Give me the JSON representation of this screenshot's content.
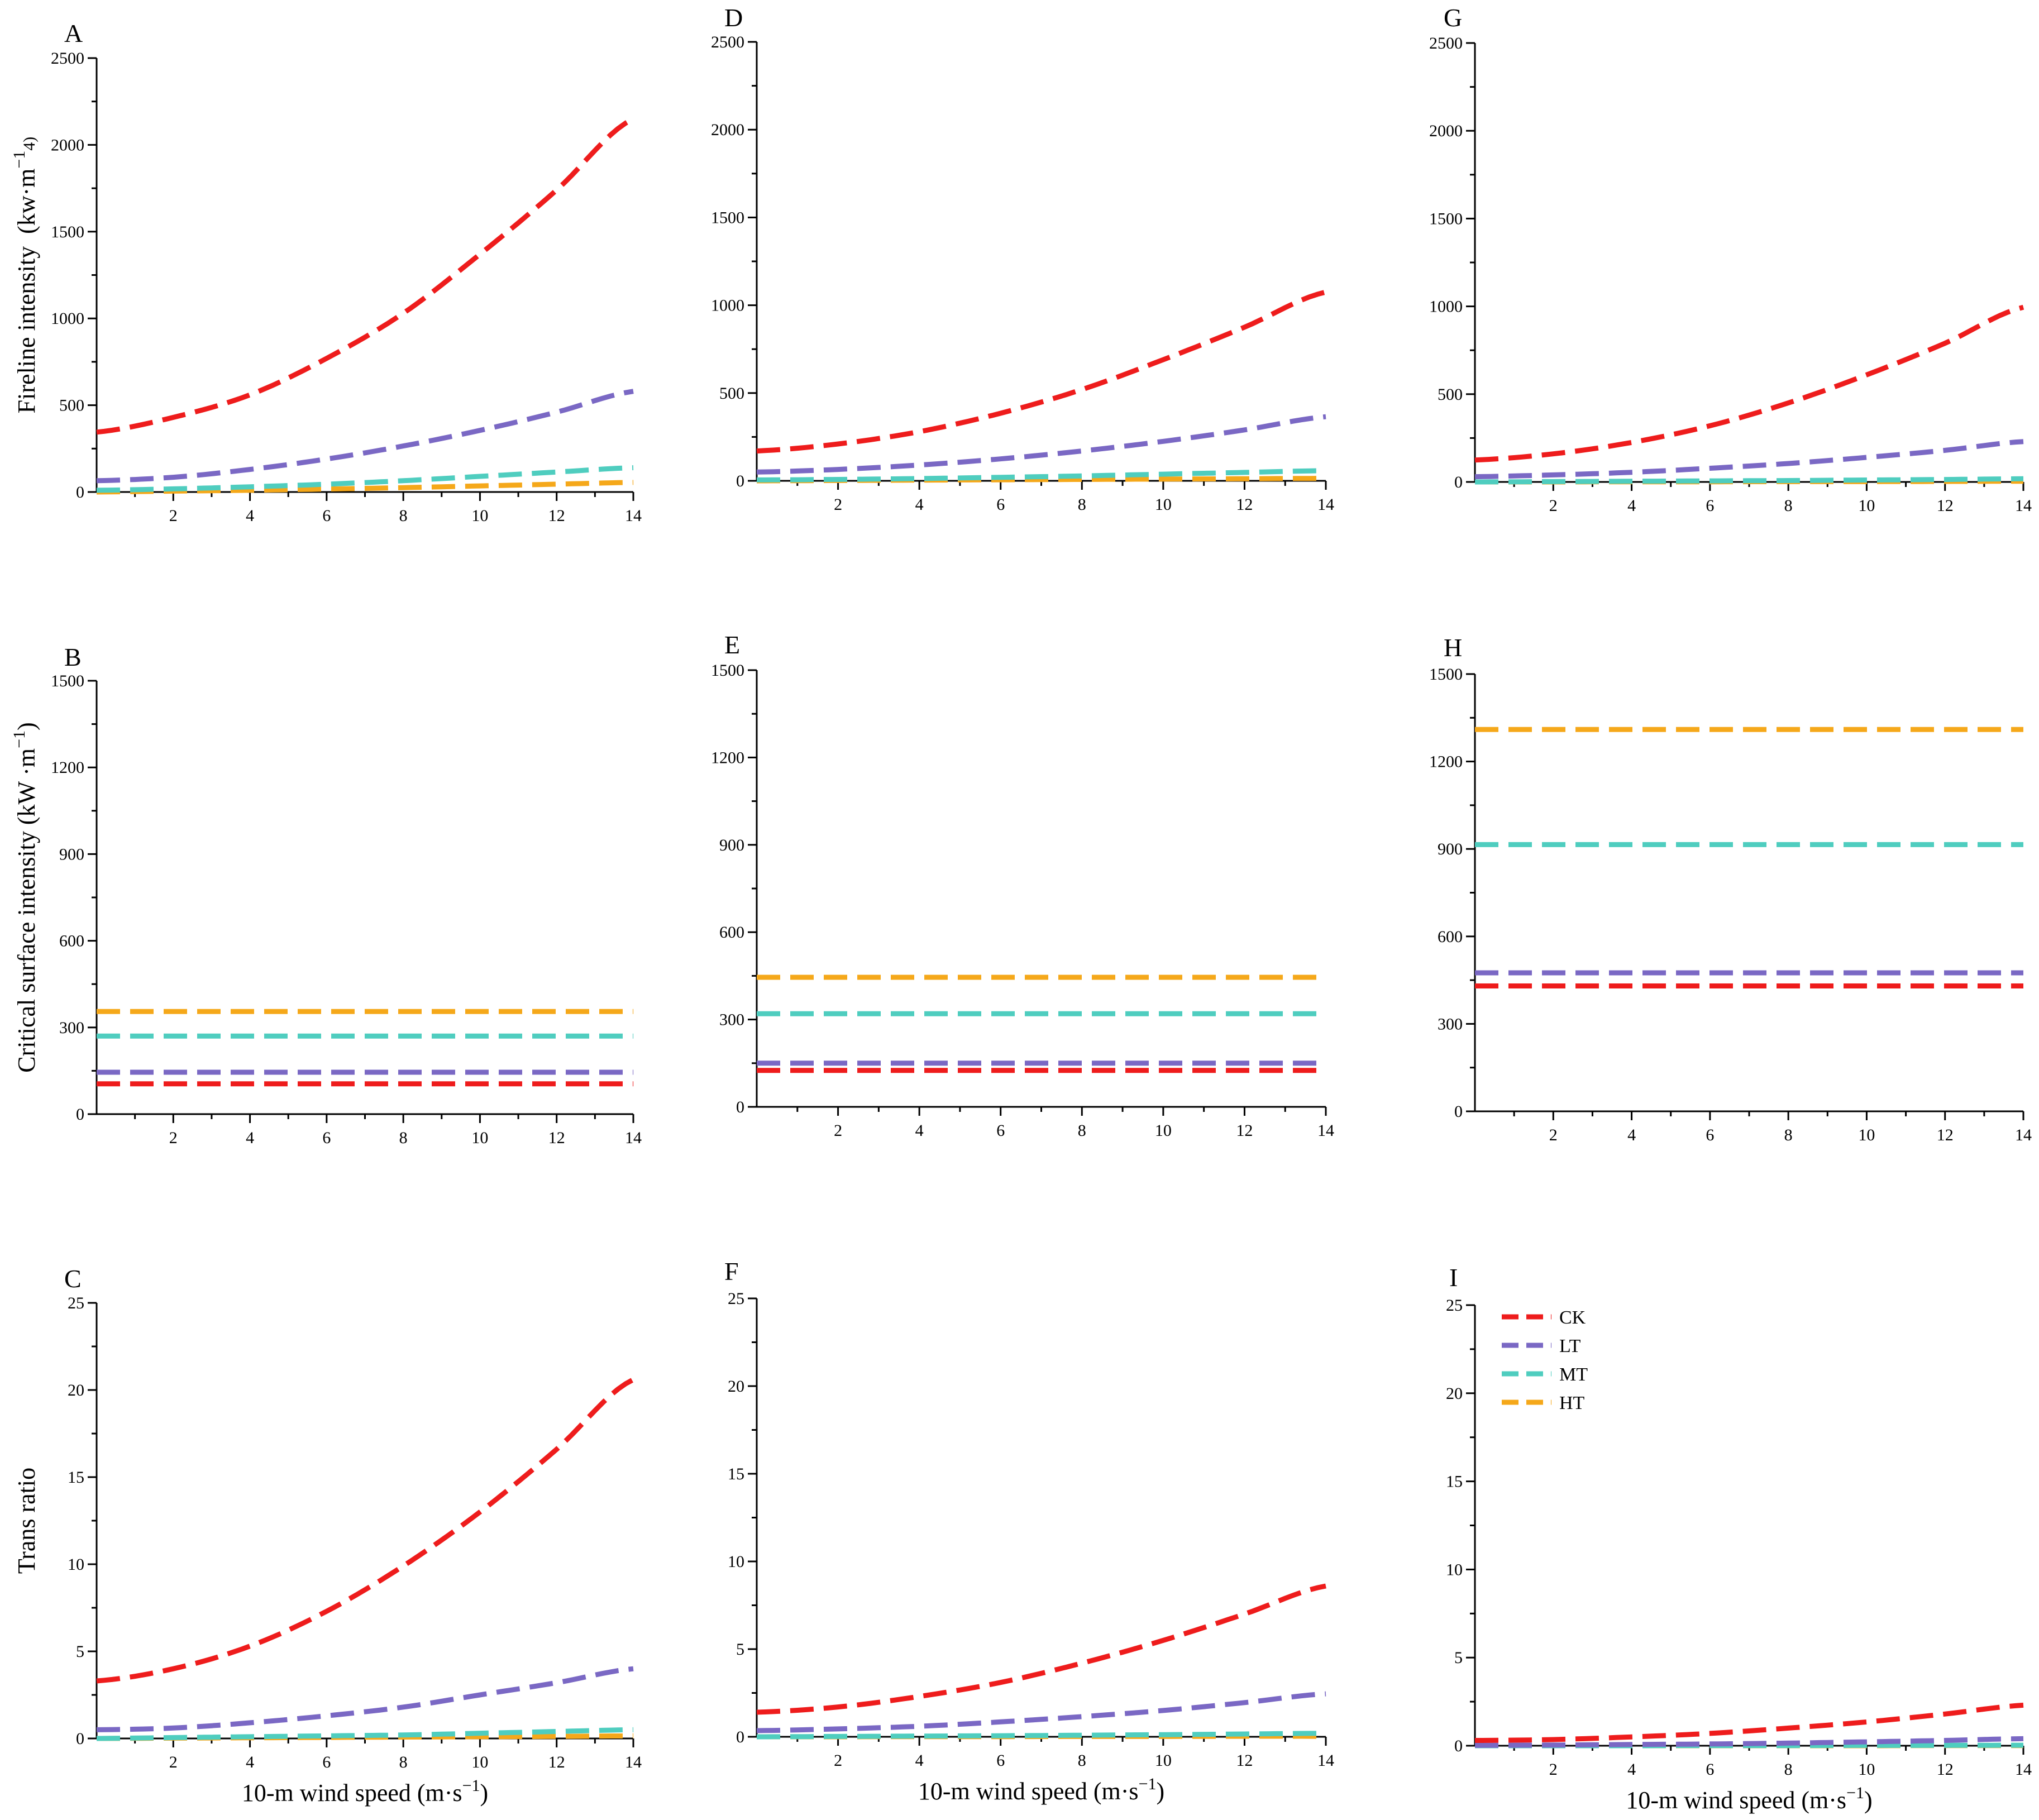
{
  "colors": {
    "CK": "#ee1c1c",
    "LT": "#7a68c4",
    "MT": "#4fcdbf",
    "HT": "#f5a81a",
    "axis": "#000000"
  },
  "legend": {
    "entries": [
      "CK",
      "LT",
      "MT",
      "HT"
    ],
    "placement": "top-left of panel I"
  },
  "chart_data": [
    {
      "panel": "A",
      "type": "line",
      "ylabel_main": "Fireline intensity",
      "ylabel_unit": "(kw·m",
      "ylabel_sup": "−1",
      "ylabel_extra": "4)",
      "xlabel": "",
      "xlim": [
        0,
        14
      ],
      "ylim": [
        0,
        2500
      ],
      "xticks": [
        2,
        4,
        6,
        8,
        10,
        12,
        14
      ],
      "yticks": [
        0,
        500,
        1000,
        1500,
        2000,
        2500
      ],
      "x": [
        0,
        2,
        4,
        6,
        8,
        10,
        12,
        14
      ],
      "series": [
        {
          "name": "CK",
          "values": [
            345,
            430,
            560,
            770,
            1030,
            1370,
            1740,
            2150
          ]
        },
        {
          "name": "LT",
          "values": [
            65,
            85,
            130,
            190,
            265,
            355,
            460,
            580
          ]
        },
        {
          "name": "MT",
          "values": [
            10,
            18,
            30,
            45,
            65,
            90,
            115,
            140
          ]
        },
        {
          "name": "HT",
          "values": [
            0,
            5,
            10,
            17,
            25,
            35,
            45,
            55
          ]
        }
      ]
    },
    {
      "panel": "B",
      "type": "line",
      "ylabel_main": "Critical surface intensity (kW ·m",
      "ylabel_sup": "−1",
      "ylabel_close": ")",
      "xlabel": "",
      "xlim": [
        0,
        14
      ],
      "ylim": [
        0,
        1500
      ],
      "xticks": [
        2,
        4,
        6,
        8,
        10,
        12,
        14
      ],
      "yticks": [
        0,
        300,
        600,
        900,
        1200,
        1500
      ],
      "x": [
        0,
        14
      ],
      "series": [
        {
          "name": "CK",
          "values": [
            105,
            105
          ]
        },
        {
          "name": "LT",
          "values": [
            145,
            145
          ]
        },
        {
          "name": "MT",
          "values": [
            270,
            270
          ]
        },
        {
          "name": "HT",
          "values": [
            355,
            355
          ]
        }
      ]
    },
    {
      "panel": "C",
      "type": "line",
      "ylabel_main": "Trans ratio",
      "xlabel": "10-m wind speed (m·s",
      "xlabel_sup": "−1",
      "xlabel_close": ")",
      "xlim": [
        0,
        14
      ],
      "ylim": [
        0,
        25
      ],
      "xticks": [
        2,
        4,
        6,
        8,
        10,
        12,
        14
      ],
      "yticks": [
        0,
        5,
        10,
        15,
        20,
        25
      ],
      "x": [
        0,
        2,
        4,
        6,
        8,
        10,
        12,
        14
      ],
      "series": [
        {
          "name": "CK",
          "values": [
            3.3,
            4.0,
            5.3,
            7.3,
            9.9,
            13.0,
            16.6,
            20.6
          ]
        },
        {
          "name": "LT",
          "values": [
            0.5,
            0.6,
            0.9,
            1.3,
            1.8,
            2.5,
            3.2,
            4.0
          ]
        },
        {
          "name": "MT",
          "values": [
            0.0,
            0.05,
            0.1,
            0.15,
            0.2,
            0.3,
            0.4,
            0.5
          ]
        },
        {
          "name": "HT",
          "values": [
            0.0,
            0.02,
            0.04,
            0.06,
            0.08,
            0.1,
            0.12,
            0.15
          ]
        }
      ]
    },
    {
      "panel": "D",
      "type": "line",
      "xlim": [
        0,
        14
      ],
      "ylim": [
        0,
        2500
      ],
      "xticks": [
        2,
        4,
        6,
        8,
        10,
        12,
        14
      ],
      "yticks": [
        0,
        500,
        1000,
        1500,
        2000,
        2500
      ],
      "x": [
        0,
        2,
        4,
        6,
        8,
        10,
        12,
        14
      ],
      "series": [
        {
          "name": "CK",
          "values": [
            170,
            210,
            280,
            385,
            520,
            690,
            875,
            1075
          ]
        },
        {
          "name": "LT",
          "values": [
            50,
            65,
            90,
            125,
            170,
            225,
            290,
            365
          ]
        },
        {
          "name": "MT",
          "values": [
            5,
            8,
            13,
            20,
            28,
            38,
            48,
            58
          ]
        },
        {
          "name": "HT",
          "values": [
            0,
            2,
            4,
            6,
            8,
            10,
            12,
            14
          ]
        }
      ]
    },
    {
      "panel": "E",
      "type": "line",
      "xlim": [
        0,
        14
      ],
      "ylim": [
        0,
        1500
      ],
      "xticks": [
        2,
        4,
        6,
        8,
        10,
        12,
        14
      ],
      "yticks": [
        0,
        300,
        600,
        900,
        1200,
        1500
      ],
      "x": [
        0,
        14
      ],
      "series": [
        {
          "name": "CK",
          "values": [
            125,
            125
          ]
        },
        {
          "name": "LT",
          "values": [
            150,
            150
          ]
        },
        {
          "name": "MT",
          "values": [
            320,
            320
          ]
        },
        {
          "name": "HT",
          "values": [
            445,
            445
          ]
        }
      ]
    },
    {
      "panel": "F",
      "type": "line",
      "xlabel": "10-m wind speed (m·s",
      "xlabel_sup": "−1",
      "xlabel_close": ")",
      "xlim": [
        0,
        14
      ],
      "ylim": [
        0,
        25
      ],
      "xticks": [
        2,
        4,
        6,
        8,
        10,
        12,
        14
      ],
      "yticks": [
        0,
        5,
        10,
        15,
        20,
        25
      ],
      "x": [
        0,
        2,
        4,
        6,
        8,
        10,
        12,
        14
      ],
      "series": [
        {
          "name": "CK",
          "values": [
            1.4,
            1.7,
            2.3,
            3.1,
            4.2,
            5.5,
            7.0,
            8.6
          ]
        },
        {
          "name": "LT",
          "values": [
            0.35,
            0.45,
            0.6,
            0.85,
            1.15,
            1.5,
            1.95,
            2.45
          ]
        },
        {
          "name": "MT",
          "values": [
            0.0,
            0.02,
            0.04,
            0.06,
            0.09,
            0.12,
            0.16,
            0.2
          ]
        },
        {
          "name": "HT",
          "values": [
            0.0,
            0.0,
            0.01,
            0.01,
            0.02,
            0.02,
            0.03,
            0.03
          ]
        }
      ]
    },
    {
      "panel": "G",
      "type": "line",
      "xlim": [
        0,
        14
      ],
      "ylim": [
        0,
        2500
      ],
      "xticks": [
        2,
        4,
        6,
        8,
        10,
        12,
        14
      ],
      "yticks": [
        0,
        500,
        1000,
        1500,
        2000,
        2500
      ],
      "x": [
        0,
        2,
        4,
        6,
        8,
        10,
        12,
        14
      ],
      "series": [
        {
          "name": "CK",
          "values": [
            125,
            160,
            225,
            320,
            450,
            610,
            790,
            995
          ]
        },
        {
          "name": "LT",
          "values": [
            30,
            40,
            55,
            78,
            105,
            140,
            180,
            230
          ]
        },
        {
          "name": "MT",
          "values": [
            0,
            2,
            4,
            6,
            8,
            11,
            14,
            18
          ]
        },
        {
          "name": "HT",
          "values": [
            0,
            0,
            1,
            1,
            2,
            2,
            3,
            4
          ]
        }
      ]
    },
    {
      "panel": "H",
      "type": "line",
      "xlim": [
        0,
        14
      ],
      "ylim": [
        0,
        1500
      ],
      "xticks": [
        2,
        4,
        6,
        8,
        10,
        12,
        14
      ],
      "yticks": [
        0,
        300,
        600,
        900,
        1200,
        1500
      ],
      "x": [
        0,
        14
      ],
      "series": [
        {
          "name": "CK",
          "values": [
            430,
            430
          ]
        },
        {
          "name": "LT",
          "values": [
            475,
            475
          ]
        },
        {
          "name": "MT",
          "values": [
            915,
            915
          ]
        },
        {
          "name": "HT",
          "values": [
            1310,
            1310
          ]
        }
      ]
    },
    {
      "panel": "I",
      "type": "line",
      "xlabel": "10-m wind speed (m·s",
      "xlabel_sup": "−1",
      "xlabel_close": ")",
      "xlim": [
        0,
        14
      ],
      "ylim": [
        0,
        25
      ],
      "xticks": [
        2,
        4,
        6,
        8,
        10,
        12,
        14
      ],
      "yticks": [
        0,
        5,
        10,
        15,
        20,
        25
      ],
      "x": [
        0,
        2,
        4,
        6,
        8,
        10,
        12,
        14
      ],
      "series": [
        {
          "name": "CK",
          "values": [
            0.3,
            0.35,
            0.5,
            0.7,
            1.0,
            1.35,
            1.8,
            2.3
          ]
        },
        {
          "name": "LT",
          "values": [
            0.02,
            0.04,
            0.07,
            0.1,
            0.15,
            0.22,
            0.3,
            0.4
          ]
        },
        {
          "name": "MT",
          "values": [
            0.0,
            0.0,
            0.0,
            0.01,
            0.01,
            0.02,
            0.02,
            0.03
          ]
        },
        {
          "name": "HT",
          "values": [
            0.0,
            0.0,
            0.0,
            0.0,
            0.0,
            0.0,
            0.01,
            0.01
          ]
        }
      ]
    }
  ]
}
